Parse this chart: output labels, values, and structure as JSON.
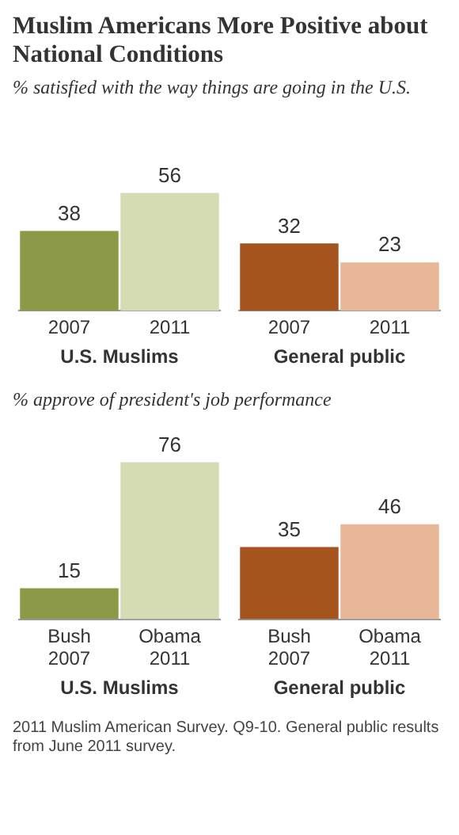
{
  "chart_data": [
    {
      "type": "bar",
      "title": "Muslim Americans More Positive about National Conditions",
      "subtitle": "% satisfied with the way things are going in the U.S.",
      "xlabel": "U.S. Muslims",
      "categories": [
        "2007",
        "2011"
      ],
      "values": [
        38,
        56
      ],
      "colors": [
        "#8c9a48",
        "#d5dbb2"
      ],
      "data_labels": true,
      "legend": false,
      "grid": false
    },
    {
      "type": "bar",
      "xlabel": "General public",
      "categories": [
        "2007",
        "2011"
      ],
      "values": [
        32,
        23
      ],
      "colors": [
        "#a5541e",
        "#e8b797"
      ],
      "data_labels": true,
      "legend": false,
      "grid": false
    },
    {
      "type": "bar",
      "subtitle": "% approve of president's job performance",
      "xlabel": "U.S. Muslims",
      "categories": [
        "Bush 2007",
        "Obama 2011"
      ],
      "values": [
        15,
        76
      ],
      "colors": [
        "#8c9a48",
        "#d5dbb2"
      ],
      "data_labels": true,
      "legend": false,
      "grid": false
    },
    {
      "type": "bar",
      "xlabel": "General public",
      "categories": [
        "Bush 2007",
        "Obama 2011"
      ],
      "values": [
        35,
        46
      ],
      "colors": [
        "#a5541e",
        "#e8b797"
      ],
      "data_labels": true,
      "legend": false,
      "grid": false,
      "annotations": [
        "2011 Muslim American Survey. Q9-10. General public results from June 2011 survey."
      ]
    }
  ]
}
